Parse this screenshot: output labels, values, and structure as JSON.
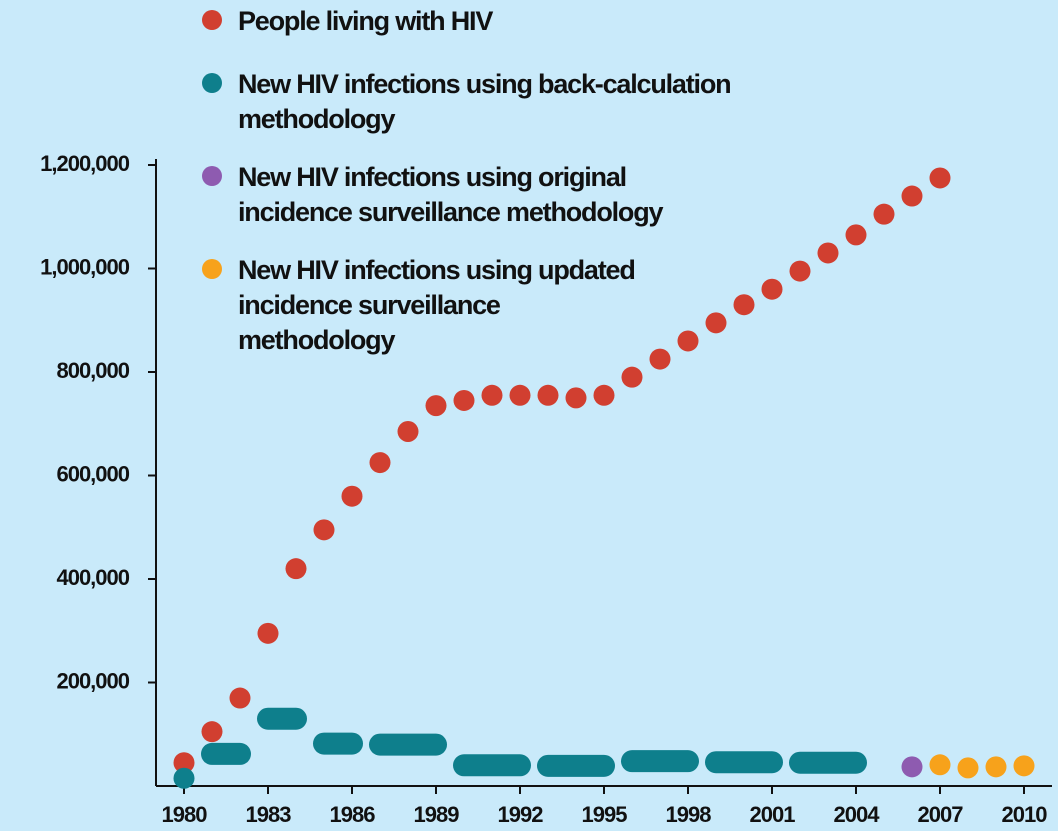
{
  "chart_data": {
    "type": "scatter",
    "xlim": [
      1979,
      2011
    ],
    "xticks": [
      1980,
      1983,
      1986,
      1989,
      1992,
      1995,
      1998,
      2001,
      2004,
      2007,
      2010
    ],
    "ylim": [
      0,
      1200000
    ],
    "yticks": [
      {
        "value": 200000,
        "label": "200,000"
      },
      {
        "value": 400000,
        "label": "400,000"
      },
      {
        "value": 600000,
        "label": "600,000"
      },
      {
        "value": 800000,
        "label": "800,000"
      },
      {
        "value": 1000000,
        "label": "1,000,000"
      },
      {
        "value": 1200000,
        "label": "1,200,000"
      }
    ],
    "series": [
      {
        "name": "People living with HIV",
        "color": "#d13f30",
        "x": [
          1980,
          1981,
          1982,
          1983,
          1984,
          1985,
          1986,
          1987,
          1988,
          1989,
          1990,
          1991,
          1992,
          1993,
          1994,
          1995,
          1996,
          1997,
          1998,
          1999,
          2000,
          2001,
          2002,
          2003,
          2004,
          2005,
          2006,
          2007
        ],
        "values": [
          45000,
          105000,
          170000,
          295000,
          420000,
          495000,
          560000,
          625000,
          685000,
          735000,
          745000,
          755000,
          755000,
          755000,
          750000,
          755000,
          790000,
          825000,
          860000,
          895000,
          930000,
          960000,
          995000,
          1030000,
          1065000,
          1105000,
          1140000,
          1175000
        ]
      },
      {
        "name": "New HIV infections using back-calculation\nmethodology",
        "color": "#0e7f8c",
        "x": [
          1980,
          1981,
          1982,
          1983,
          1984,
          1985,
          1986,
          1987,
          1988,
          1989,
          1990,
          1991,
          1992,
          1993,
          1994,
          1995,
          1996,
          1997,
          1998,
          1999,
          2000,
          2001,
          2002,
          2003,
          2004
        ],
        "values": [
          15000,
          62000,
          62000,
          130000,
          130000,
          82000,
          82000,
          80000,
          80000,
          80000,
          40000,
          40000,
          40000,
          39000,
          39000,
          39000,
          48000,
          48000,
          48000,
          46000,
          46000,
          46000,
          45000,
          45000,
          45000
        ]
      },
      {
        "name": "New HIV infections using original\nincidence surveillance methodology",
        "color": "#8e5bb0",
        "x": [
          2006
        ],
        "values": [
          37000
        ]
      },
      {
        "name": "New HIV infections using updated\nincidence surveillance\nmethodology",
        "color": "#f7a21b",
        "x": [
          2007,
          2008,
          2009,
          2010
        ],
        "values": [
          41000,
          35000,
          37000,
          39000
        ]
      }
    ]
  }
}
